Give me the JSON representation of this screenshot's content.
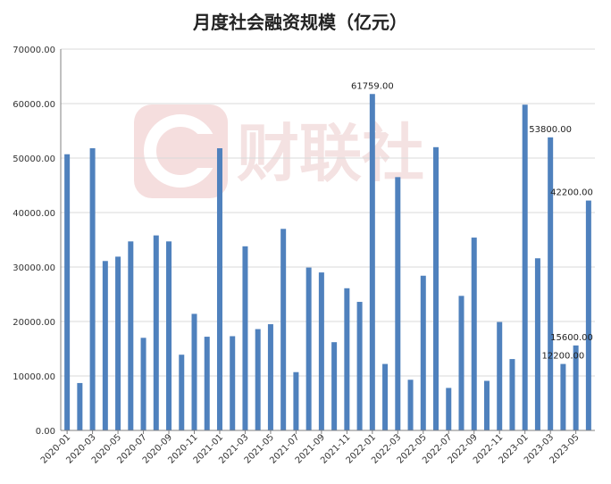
{
  "chart_data": {
    "type": "bar",
    "title": "月度社会融资规模（亿元）",
    "xlabel": "",
    "ylabel": "",
    "ylim": [
      0,
      70000
    ],
    "yticks": [
      "0.00",
      "10000.00",
      "20000.00",
      "30000.00",
      "40000.00",
      "50000.00",
      "60000.00",
      "70000.00"
    ],
    "grid": true,
    "legend": "none",
    "bar_color": "#4f81bd",
    "categories": [
      "2020-01",
      "2020-02",
      "2020-03",
      "2020-04",
      "2020-05",
      "2020-06",
      "2020-07",
      "2020-08",
      "2020-09",
      "2020-10",
      "2020-11",
      "2020-12",
      "2021-01",
      "2021-02",
      "2021-03",
      "2021-04",
      "2021-05",
      "2021-06",
      "2021-07",
      "2021-08",
      "2021-09",
      "2021-10",
      "2021-11",
      "2021-12",
      "2022-01",
      "2022-02",
      "2022-03",
      "2022-04",
      "2022-05",
      "2022-06",
      "2022-07",
      "2022-08",
      "2022-09",
      "2022-10",
      "2022-11",
      "2022-12",
      "2023-01",
      "2023-02",
      "2023-03",
      "2023-04",
      "2023-05",
      "2023-06"
    ],
    "x_tick_labels": [
      "2020-01",
      "2020-03",
      "2020-05",
      "2020-07",
      "2020-09",
      "2020-11",
      "2021-01",
      "2021-03",
      "2021-05",
      "2021-07",
      "2021-09",
      "2021-11",
      "2022-01",
      "2022-03",
      "2022-05",
      "2022-07",
      "2022-09",
      "2022-11",
      "2023-01",
      "2023-03",
      "2023-05"
    ],
    "values": [
      50700,
      8700,
      51800,
      31100,
      31900,
      34700,
      17000,
      35800,
      34700,
      13900,
      21400,
      17200,
      51800,
      17300,
      33800,
      18600,
      19500,
      37000,
      10700,
      29900,
      29000,
      16200,
      26100,
      23600,
      61759,
      12200,
      46500,
      9300,
      28400,
      52000,
      7800,
      24700,
      35400,
      9100,
      19900,
      13100,
      59800,
      31600,
      53800,
      12200,
      15600,
      42200
    ],
    "data_labels": [
      {
        "index": 24,
        "text": "61759.00"
      },
      {
        "index": 38,
        "text": "53800.00"
      },
      {
        "index": 41,
        "text": "42200.00"
      },
      {
        "index": 40,
        "text": "15600.00"
      },
      {
        "index": 39,
        "text": "12200.00"
      }
    ]
  },
  "watermark": {
    "text": "财联社",
    "color": "#f4e2e2"
  }
}
